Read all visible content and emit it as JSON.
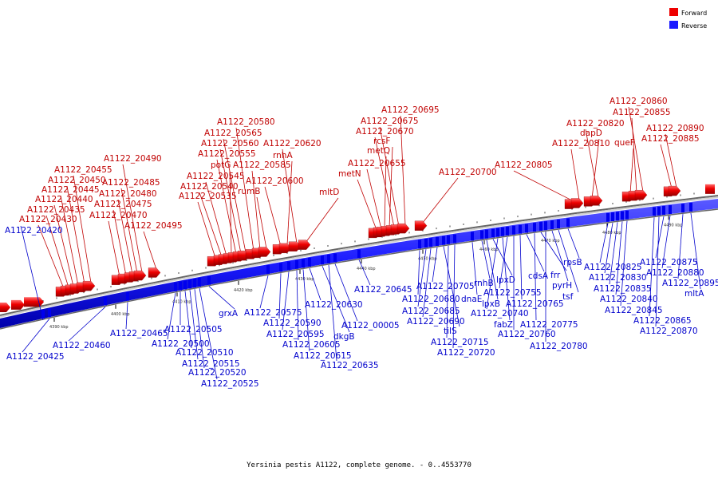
{
  "caption": "Yersinia pestis A1122, complete genome. - 0..4553770",
  "legend": [
    {
      "label": "Forward",
      "color": "#ee0000"
    },
    {
      "label": "Reverse",
      "color": "#1a1aff"
    }
  ],
  "colors": {
    "forward": "#ee0000",
    "reverse": "#1a1aff",
    "backbone": "#b0b0b0",
    "forward_label": "#c00000",
    "reverse_label": "#0000cc"
  },
  "ticks": [
    "4390 kbp",
    "4400 kbp",
    "4410 kbp",
    "4420 kbp",
    "4430 kbp",
    "4440 kbp",
    "4450 kbp",
    "4460 kbp",
    "4470 kbp",
    "4480 kbp",
    "4490 kbp"
  ],
  "forward_genes": [
    "A1122_20430",
    "A1122_20435",
    "A1122_20440",
    "A1122_20445",
    "A1122_20450",
    "A1122_20455",
    "A1122_20470",
    "A1122_20475",
    "A1122_20480",
    "A1122_20485",
    "A1122_20490",
    "A1122_20495",
    "A1122_20535",
    "A1122_20540",
    "A1122_20545",
    "potG",
    "A1122_20555",
    "A1122_20560",
    "A1122_20565",
    "A1122_20580",
    "A1122_20585",
    "rumB",
    "A1122_20600",
    "rnhA",
    "A1122_20620",
    "mltD",
    "metN",
    "A1122_20655",
    "metQ",
    "rcsF",
    "A1122_20670",
    "A1122_20675",
    "A1122_20695",
    "A1122_20700",
    "A1122_20805",
    "A1122_20810",
    "dapD",
    "A1122_20820",
    "queF",
    "A1122_20855",
    "A1122_20860",
    "A1122_20885",
    "A1122_20890"
  ],
  "reverse_genes": [
    "A1122_20420",
    "A1122_20425",
    "A1122_20460",
    "A1122_20465",
    "A1122_20500",
    "A1122_20505",
    "A1122_20510",
    "A1122_20515",
    "A1122_20520",
    "A1122_20525",
    "grxA",
    "A1122_20575",
    "A1122_20590",
    "A1122_20595",
    "A1122_20605",
    "A1122_20615",
    "A1122_20630",
    "dkgB",
    "A1122_20635",
    "A1122_00005",
    "A1122_20645",
    "A1122_20680",
    "A1122_20685",
    "A1122_20690",
    "A1122_20705",
    "tilS",
    "A1122_20715",
    "A1122_20720",
    "dnaE",
    "rnhB",
    "lpxB",
    "lpxD",
    "A1122_20740",
    "fabZ",
    "A1122_20755",
    "A1122_20760",
    "A1122_20765",
    "cdsA",
    "A1122_20775",
    "frr",
    "A1122_20780",
    "pyrH",
    "tsf",
    "rpsB",
    "A1122_20825",
    "A1122_20830",
    "A1122_20835",
    "A1122_20840",
    "A1122_20845",
    "A1122_20865",
    "A1122_20870",
    "A1122_20875",
    "A1122_20880",
    "A1122_20895",
    "mltA"
  ]
}
